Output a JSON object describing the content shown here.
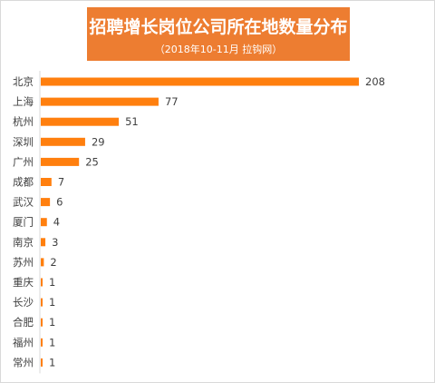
{
  "chart_data": {
    "type": "bar",
    "orientation": "horizontal",
    "title": "招聘增长岗位公司所在地数量分布",
    "subtitle": "（2018年10-11月 拉钩网）",
    "categories": [
      "北京",
      "上海",
      "杭州",
      "深圳",
      "广州",
      "成都",
      "武汉",
      "厦门",
      "南京",
      "苏州",
      "重庆",
      "长沙",
      "合肥",
      "福州",
      "常州"
    ],
    "values": [
      208,
      77,
      51,
      29,
      25,
      7,
      6,
      4,
      3,
      2,
      1,
      1,
      1,
      1,
      1
    ],
    "xlim": [
      0,
      208
    ],
    "grid": false,
    "legend": "none",
    "bar_color": "#ff7f0e",
    "title_bg_color": "#ed7d31"
  }
}
